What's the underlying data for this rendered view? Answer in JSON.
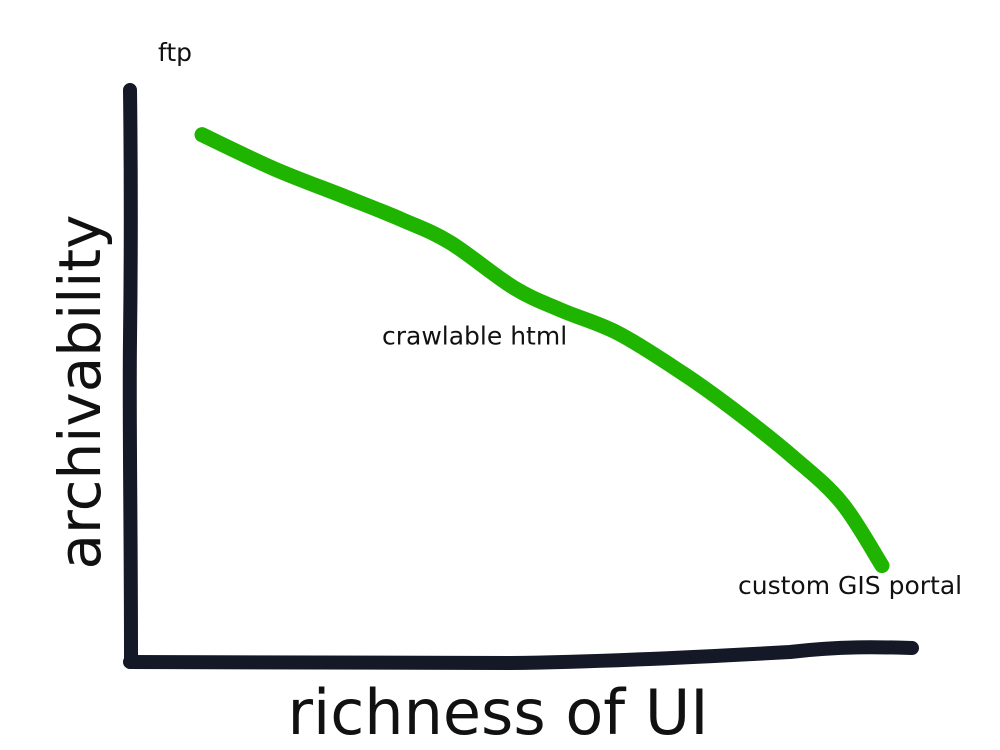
{
  "chart_data": {
    "type": "line",
    "title": "",
    "xlabel": "richness of UI",
    "ylabel": "archivability",
    "xlim": [
      0,
      10
    ],
    "ylim": [
      0,
      10
    ],
    "grid": false,
    "series": [
      {
        "color": "#1eb400",
        "x": [
          0.9,
          1.8,
          2.7,
          3.4,
          4.0,
          4.8,
          5.4,
          6.1,
          6.9,
          7.5,
          8.3,
          8.9,
          9.4
        ],
        "y": [
          9.3,
          8.7,
          8.2,
          7.8,
          7.4,
          6.6,
          6.2,
          5.8,
          5.1,
          4.5,
          3.6,
          2.8,
          1.7
        ]
      }
    ],
    "annotations": [
      {
        "text": "ftp",
        "x": 0.35,
        "y": 10.6
      },
      {
        "text": "crawlable html",
        "x": 3.15,
        "y": 5.6
      },
      {
        "text": "custom GIS portal",
        "x": 7.6,
        "y": 1.2
      }
    ]
  },
  "colors": {
    "axis": "#141827",
    "line": "#1eb400"
  }
}
